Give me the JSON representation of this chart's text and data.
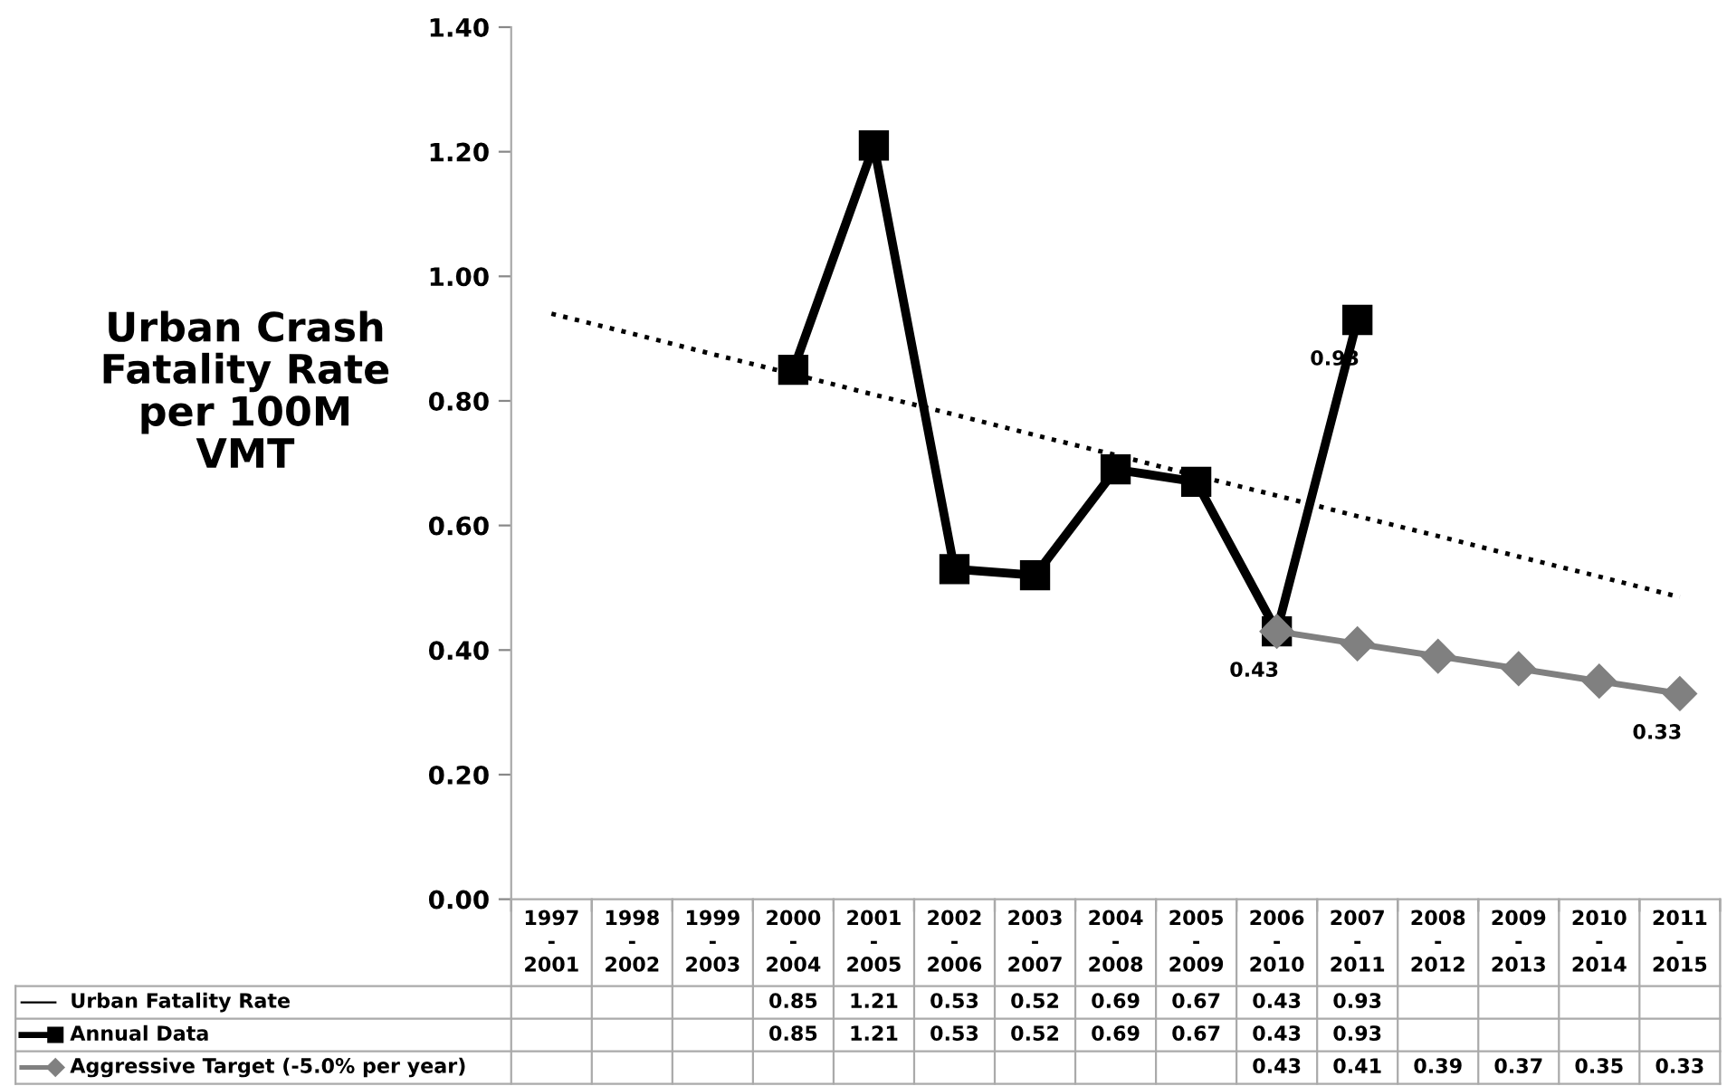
{
  "chart_data": {
    "type": "line",
    "ylabel": "Urban Crash\nFatality Rate\nper 100M\nVMT",
    "categories": [
      "1997\n-\n2001",
      "1998\n-\n2002",
      "1999\n-\n2003",
      "2000\n-\n2004",
      "2001\n-\n2005",
      "2002\n-\n2006",
      "2003\n-\n2007",
      "2004\n-\n2008",
      "2005\n-\n2009",
      "2006\n-\n2010",
      "2007\n-\n2011",
      "2008\n-\n2012",
      "2009\n-\n2013",
      "2010\n-\n2014",
      "2011\n-\n2015"
    ],
    "ylim": [
      0,
      1.4
    ],
    "yticks": [
      {
        "value": 0,
        "label": "0.00"
      },
      {
        "value": 0.2,
        "label": "0.20"
      },
      {
        "value": 0.4,
        "label": "0.40"
      },
      {
        "value": 0.6,
        "label": "0.60"
      },
      {
        "value": 0.8,
        "label": "0.80"
      },
      {
        "value": 1.0,
        "label": "1.00"
      },
      {
        "value": 1.2,
        "label": "1.20"
      },
      {
        "value": 1.4,
        "label": "1.40"
      }
    ],
    "grid": false,
    "legend": "bottom",
    "series": [
      {
        "name": "Urban Fatality Rate",
        "color": "#000000",
        "marker": "none",
        "line_style": "solid",
        "values": [
          null,
          null,
          null,
          null,
          null,
          null,
          null,
          null,
          null,
          null,
          null,
          null,
          null,
          null,
          null
        ],
        "value_labels": [
          null,
          null,
          null,
          "0.85",
          "1.21",
          "0.53",
          "0.52",
          "0.69",
          "0.67",
          "0.43",
          "0.93",
          null,
          null,
          null,
          null
        ]
      },
      {
        "name": "Annual Data",
        "color": "#000000",
        "marker": "square",
        "line_style": "solid",
        "values": [
          null,
          null,
          null,
          0.85,
          1.21,
          0.53,
          0.52,
          0.69,
          0.67,
          0.43,
          0.93,
          null,
          null,
          null,
          null
        ],
        "value_labels": [
          null,
          null,
          null,
          "0.85",
          "1.21",
          "0.53",
          "0.52",
          "0.69",
          "0.67",
          "0.43",
          "0.93",
          null,
          null,
          null,
          null
        ]
      },
      {
        "name": "Aggressive Target (-5.0% per year)",
        "color": "#808080",
        "marker": "diamond",
        "line_style": "solid",
        "values": [
          null,
          null,
          null,
          null,
          null,
          null,
          null,
          null,
          null,
          0.43,
          0.41,
          0.39,
          0.37,
          0.35,
          0.33
        ],
        "value_labels": [
          null,
          null,
          null,
          null,
          null,
          null,
          null,
          null,
          null,
          "0.43",
          "0.41",
          "0.39",
          "0.37",
          "0.35",
          "0.33"
        ]
      },
      {
        "type": "line",
        "color": "#000000",
        "marker": "none",
        "line_style": "dotted",
        "values": [
          0.94,
          0.908,
          0.875,
          0.843,
          0.81,
          0.778,
          0.745,
          0.713,
          0.68,
          0.648,
          0.615,
          0.583,
          0.55,
          0.518,
          0.485
        ]
      }
    ],
    "annotations": [
      {
        "text": "0.43",
        "x": "2006\n-\n2010",
        "y": 0.43
      },
      {
        "text": "0.93",
        "x": "2007\n-\n2011",
        "y": 0.93
      },
      {
        "text": "0.33",
        "x": "2011\n-\n2015",
        "y": 0.33
      }
    ]
  }
}
